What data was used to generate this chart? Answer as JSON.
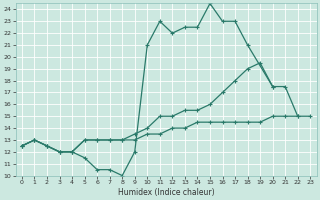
{
  "xlabel": "Humidex (Indice chaleur)",
  "xlim": [
    -0.5,
    23.5
  ],
  "ylim": [
    10,
    24.5
  ],
  "yticks": [
    10,
    11,
    12,
    13,
    14,
    15,
    16,
    17,
    18,
    19,
    20,
    21,
    22,
    23,
    24
  ],
  "xticks": [
    0,
    1,
    2,
    3,
    4,
    5,
    6,
    7,
    8,
    9,
    10,
    11,
    12,
    13,
    14,
    15,
    16,
    17,
    18,
    19,
    20,
    21,
    22,
    23
  ],
  "bg_color": "#cce8e0",
  "grid_color": "#ffffff",
  "line_color": "#2a7a6a",
  "line1_x": [
    0,
    1,
    2,
    3,
    4,
    5,
    6,
    7,
    8,
    9,
    10,
    11,
    12,
    13,
    14,
    15,
    16,
    17,
    18,
    20
  ],
  "line1_y": [
    12.5,
    13.0,
    12.5,
    12.0,
    12.0,
    11.5,
    10.5,
    10.5,
    10.0,
    12.0,
    21.0,
    23.0,
    22.0,
    22.5,
    22.5,
    24.5,
    23.0,
    23.0,
    21.0,
    17.5
  ],
  "line2_x": [
    0,
    1,
    2,
    3,
    4,
    5,
    6,
    7,
    8,
    9,
    10,
    11,
    12,
    13,
    14,
    15,
    16,
    17,
    18,
    19,
    20,
    21,
    22
  ],
  "line2_y": [
    12.5,
    13.0,
    12.5,
    12.0,
    12.0,
    13.0,
    13.0,
    13.0,
    13.0,
    13.5,
    14.0,
    15.0,
    15.0,
    15.5,
    15.5,
    16.0,
    17.0,
    18.0,
    19.0,
    19.5,
    17.5,
    17.5,
    15.0
  ],
  "line3_x": [
    0,
    1,
    2,
    3,
    4,
    5,
    6,
    7,
    8,
    9,
    10,
    11,
    12,
    13,
    14,
    15,
    16,
    17,
    18,
    19,
    20,
    21,
    22,
    23
  ],
  "line3_y": [
    12.5,
    13.0,
    12.5,
    12.0,
    12.0,
    13.0,
    13.0,
    13.0,
    13.0,
    13.0,
    13.5,
    13.5,
    14.0,
    14.0,
    14.5,
    14.5,
    14.5,
    14.5,
    14.5,
    14.5,
    15.0,
    15.0,
    15.0,
    15.0
  ]
}
